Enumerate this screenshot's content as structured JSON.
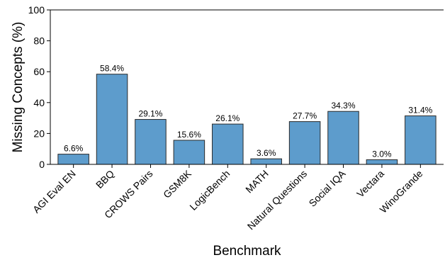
{
  "chart_data": {
    "type": "bar",
    "title": "",
    "xlabel": "Benchmark",
    "ylabel": "Missing Concepts (%)",
    "ylim": [
      0,
      100
    ],
    "yticks": [
      0,
      20,
      40,
      60,
      80,
      100
    ],
    "grid": false,
    "categories": [
      "AGI Eval EN",
      "BBQ",
      "CROWS Pairs",
      "GSM8K",
      "LogicBench",
      "MATH",
      "Natural Questions",
      "Social IQA",
      "Vectara",
      "WinoGrande"
    ],
    "values": [
      6.6,
      58.4,
      29.1,
      15.6,
      26.1,
      3.6,
      27.7,
      34.3,
      3.0,
      31.4
    ],
    "value_labels": [
      "6.6%",
      "58.4%",
      "29.1%",
      "15.6%",
      "26.1%",
      "3.6%",
      "27.7%",
      "34.3%",
      "3.0%",
      "31.4%"
    ],
    "bar_color": "#5d9ccc",
    "bar_edge_color": "#2a2a2a"
  }
}
